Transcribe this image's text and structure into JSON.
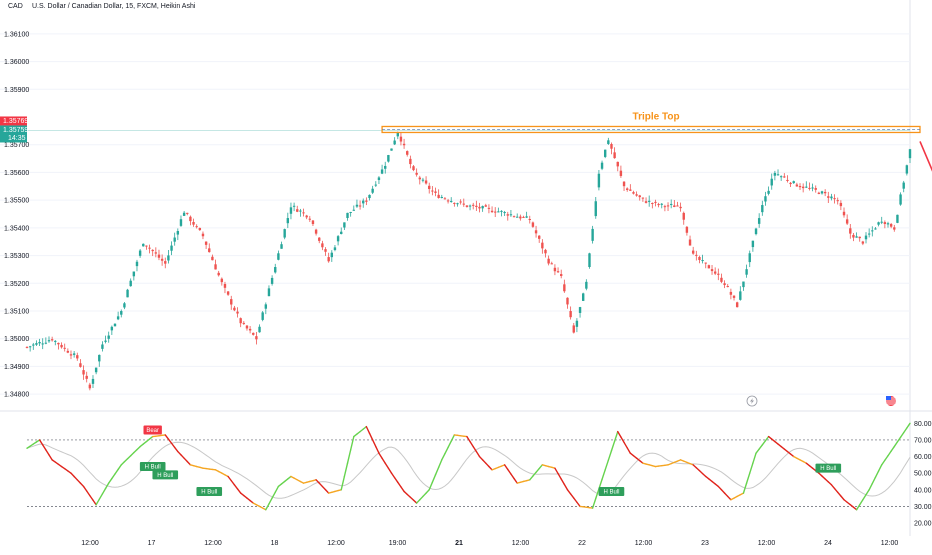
{
  "header": {
    "symbol": "CAD",
    "title": "U.S. Dollar / Canadian Dollar, 15, FXCM, Heikin Ashi"
  },
  "colors": {
    "up": "#26a69a",
    "down": "#ef5350",
    "rsi_up": "#66d34e",
    "rsi_down": "#e0241c",
    "rsi_mid": "#f5a623",
    "rsi_ma": "#c8c8c8",
    "resistance": "#f7931a",
    "arrow": "#f23645",
    "bear_tag": "#f23645",
    "bull_tag": "#2e9e5b",
    "current_price_bg": "#26a69a",
    "prev_price_bg": "#f23645",
    "grid": "#f0f3fa"
  },
  "icons": [
    "lightning-icon",
    "us-flag-icon"
  ],
  "chart_data": [
    {
      "type": "candlestick",
      "style": "Heikin Ashi",
      "ylim": [
        1.3475,
        1.3615
      ],
      "yticks": [
        "1.36100",
        "1.36000",
        "1.35900",
        "1.35700",
        "1.35600",
        "1.35500",
        "1.35400",
        "1.35300",
        "1.35200",
        "1.35100",
        "1.35000",
        "1.34900",
        "1.34800"
      ],
      "xticks": [
        "12:00",
        "17",
        "12:00",
        "18",
        "12:00",
        "19:00",
        "21",
        "12:00",
        "22",
        "12:00",
        "23",
        "12:00",
        "24",
        "12:00"
      ],
      "path": [
        [
          0,
          1.3497
        ],
        [
          8,
          1.35
        ],
        [
          16,
          1.3493
        ],
        [
          20,
          1.3482
        ],
        [
          24,
          1.3498
        ],
        [
          30,
          1.351
        ],
        [
          37,
          1.3535
        ],
        [
          44,
          1.3527
        ],
        [
          50,
          1.3546
        ],
        [
          56,
          1.3537
        ],
        [
          62,
          1.352
        ],
        [
          68,
          1.3506
        ],
        [
          73,
          1.35
        ],
        [
          78,
          1.3522
        ],
        [
          84,
          1.3548
        ],
        [
          90,
          1.3544
        ],
        [
          96,
          1.3528
        ],
        [
          102,
          1.3545
        ],
        [
          108,
          1.355
        ],
        [
          114,
          1.3563
        ],
        [
          118,
          1.3575
        ],
        [
          123,
          1.356
        ],
        [
          130,
          1.3552
        ],
        [
          140,
          1.3548
        ],
        [
          150,
          1.3546
        ],
        [
          160,
          1.3543
        ],
        [
          166,
          1.3528
        ],
        [
          170,
          1.3522
        ],
        [
          174,
          1.3502
        ],
        [
          178,
          1.352
        ],
        [
          182,
          1.356
        ],
        [
          185,
          1.3572
        ],
        [
          190,
          1.3555
        ],
        [
          196,
          1.355
        ],
        [
          202,
          1.3548
        ],
        [
          208,
          1.3548
        ],
        [
          212,
          1.353
        ],
        [
          218,
          1.3525
        ],
        [
          222,
          1.352
        ],
        [
          226,
          1.3512
        ],
        [
          230,
          1.353
        ],
        [
          234,
          1.3548
        ],
        [
          238,
          1.356
        ],
        [
          244,
          1.3556
        ],
        [
          252,
          1.3553
        ],
        [
          258,
          1.355
        ],
        [
          262,
          1.3538
        ],
        [
          266,
          1.3535
        ],
        [
          272,
          1.3543
        ],
        [
          276,
          1.354
        ],
        [
          281,
          1.3568
        ]
      ],
      "resistance": {
        "label": "Triple Top",
        "level": 1.35755
      },
      "price_labels": {
        "previous": "1.35769",
        "current": "1.35759",
        "countdown": "14:35"
      },
      "projection": "down"
    },
    {
      "type": "line",
      "name": "RSI",
      "ylim": [
        17,
        85
      ],
      "yticks": [
        "80.00",
        "70.00",
        "60.00",
        "50.00",
        "40.00",
        "30.00",
        "20.00"
      ],
      "bands": [
        70,
        30
      ],
      "path": [
        [
          0,
          65
        ],
        [
          4,
          70
        ],
        [
          8,
          58
        ],
        [
          14,
          50
        ],
        [
          18,
          42
        ],
        [
          22,
          31
        ],
        [
          26,
          44
        ],
        [
          30,
          55
        ],
        [
          36,
          66
        ],
        [
          40,
          72
        ],
        [
          44,
          73
        ],
        [
          48,
          63
        ],
        [
          52,
          55
        ],
        [
          56,
          53
        ],
        [
          60,
          52
        ],
        [
          64,
          48
        ],
        [
          68,
          38
        ],
        [
          72,
          32
        ],
        [
          76,
          28
        ],
        [
          80,
          42
        ],
        [
          84,
          48
        ],
        [
          88,
          44
        ],
        [
          92,
          46
        ],
        [
          96,
          38
        ],
        [
          100,
          40
        ],
        [
          104,
          72
        ],
        [
          108,
          78
        ],
        [
          112,
          62
        ],
        [
          116,
          50
        ],
        [
          120,
          39
        ],
        [
          124,
          32
        ],
        [
          128,
          40
        ],
        [
          132,
          58
        ],
        [
          136,
          73
        ],
        [
          140,
          72
        ],
        [
          144,
          60
        ],
        [
          148,
          52
        ],
        [
          152,
          55
        ],
        [
          156,
          44
        ],
        [
          160,
          46
        ],
        [
          164,
          55
        ],
        [
          168,
          53
        ],
        [
          172,
          40
        ],
        [
          176,
          30
        ],
        [
          180,
          29
        ],
        [
          184,
          52
        ],
        [
          188,
          75
        ],
        [
          192,
          62
        ],
        [
          196,
          56
        ],
        [
          200,
          54
        ],
        [
          204,
          55
        ],
        [
          208,
          58
        ],
        [
          212,
          55
        ],
        [
          216,
          48
        ],
        [
          220,
          42
        ],
        [
          224,
          34
        ],
        [
          228,
          38
        ],
        [
          232,
          62
        ],
        [
          236,
          72
        ],
        [
          240,
          66
        ],
        [
          244,
          60
        ],
        [
          248,
          56
        ],
        [
          252,
          50
        ],
        [
          256,
          43
        ],
        [
          260,
          34
        ],
        [
          264,
          28
        ],
        [
          268,
          40
        ],
        [
          272,
          55
        ],
        [
          276,
          66
        ],
        [
          281,
          80
        ]
      ],
      "signals": [
        {
          "label": "Bear",
          "i": 40,
          "v": 76
        },
        {
          "label": "H Bull",
          "i": 40,
          "v": 54
        },
        {
          "label": "H Bull",
          "i": 44,
          "v": 49
        },
        {
          "label": "H Bull",
          "i": 58,
          "v": 39
        },
        {
          "label": "H Bull",
          "i": 186,
          "v": 39
        },
        {
          "label": "H Bull",
          "i": 255,
          "v": 53
        }
      ]
    }
  ]
}
